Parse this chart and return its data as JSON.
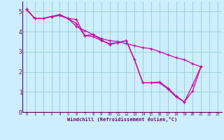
{
  "bg_color": "#cceeff",
  "line_color": "#cc00aa",
  "grid_color": "#99cccc",
  "xlabel": "Windchill (Refroidissement éolien,°C)",
  "xlabel_color": "#660066",
  "tick_color": "#660066",
  "xlim": [
    -0.5,
    23.5
  ],
  "ylim": [
    0,
    5.5
  ],
  "yticks": [
    0,
    1,
    2,
    3,
    4,
    5
  ],
  "xticks": [
    0,
    1,
    2,
    3,
    4,
    5,
    6,
    7,
    8,
    9,
    10,
    11,
    12,
    13,
    14,
    15,
    16,
    17,
    18,
    19,
    20,
    21,
    22,
    23
  ],
  "series": [
    {
      "x": [
        0,
        1,
        2,
        3,
        4,
        5,
        6,
        7,
        8,
        9,
        10,
        11,
        12,
        13,
        14,
        15,
        16,
        17,
        18,
        19,
        20,
        21
      ],
      "y": [
        5.1,
        4.65,
        4.65,
        4.75,
        4.8,
        4.65,
        4.6,
        3.8,
        3.85,
        3.6,
        3.35,
        3.45,
        3.55,
        2.6,
        1.45,
        1.45,
        1.45,
        1.15,
        0.75,
        0.5,
        1.35,
        2.25
      ]
    },
    {
      "x": [
        0,
        1,
        2,
        3,
        4,
        5,
        6,
        7,
        8,
        9,
        10,
        11,
        12,
        13,
        14,
        15,
        16,
        17,
        18,
        19,
        20,
        21
      ],
      "y": [
        5.1,
        4.65,
        4.65,
        4.75,
        4.8,
        4.65,
        4.25,
        4.05,
        3.85,
        3.65,
        3.55,
        3.5,
        3.4,
        3.3,
        3.2,
        3.15,
        3.0,
        2.85,
        2.7,
        2.6,
        2.4,
        2.25
      ]
    },
    {
      "x": [
        0,
        1,
        2,
        3,
        4,
        5,
        6,
        7,
        8,
        9,
        10,
        11,
        12,
        13,
        14,
        15,
        16,
        17,
        18,
        19,
        20,
        21
      ],
      "y": [
        5.1,
        4.65,
        4.65,
        4.75,
        4.85,
        4.65,
        4.4,
        3.8,
        3.75,
        3.55,
        3.4,
        3.45,
        3.55,
        2.6,
        1.45,
        1.45,
        1.5,
        1.2,
        0.8,
        0.5,
        1.05,
        2.25
      ]
    }
  ],
  "figsize": [
    3.2,
    2.0
  ],
  "dpi": 100
}
